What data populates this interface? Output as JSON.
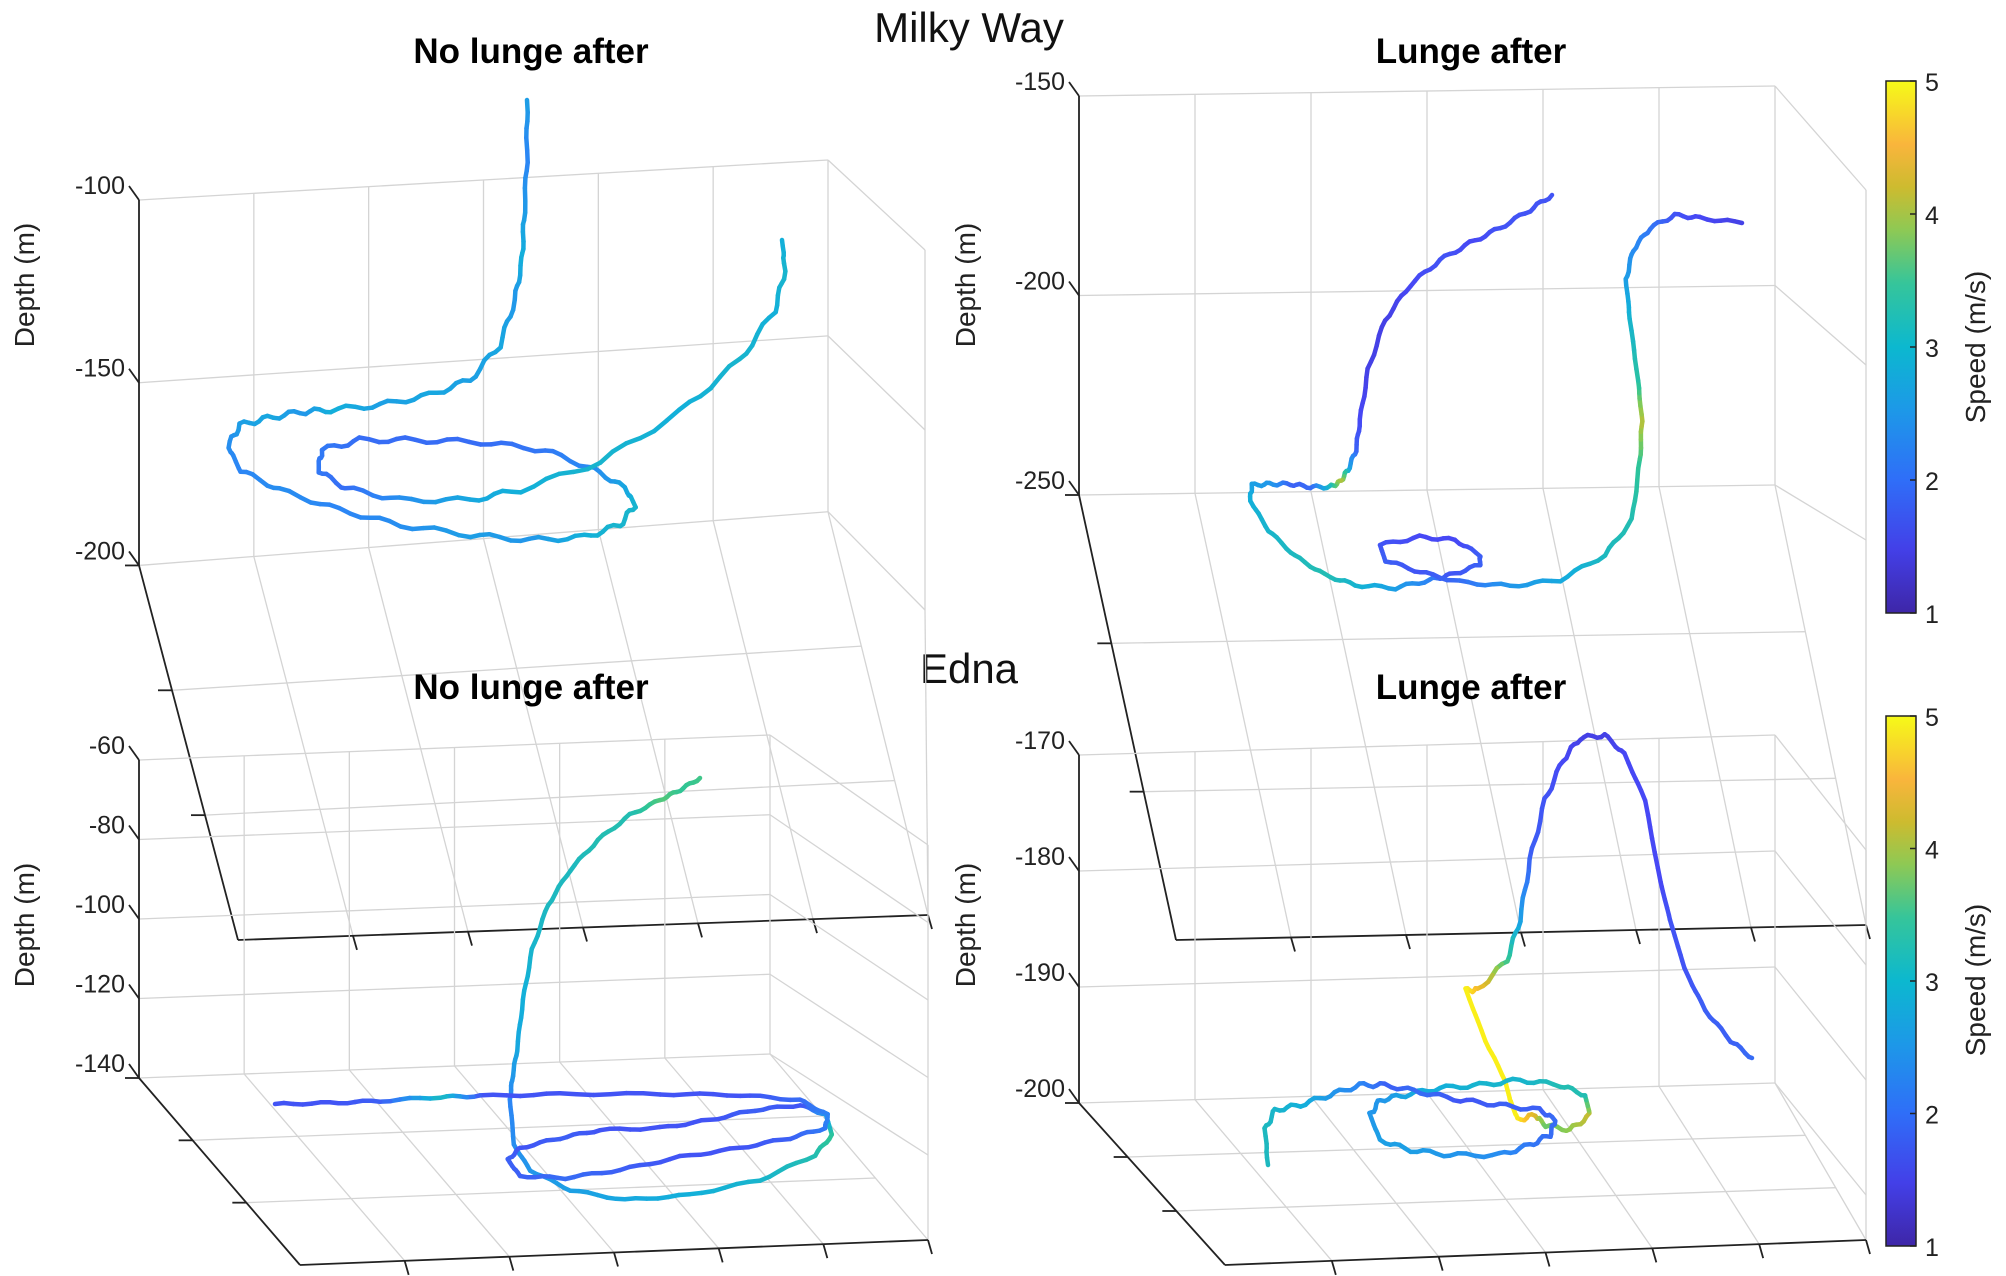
{
  "chart_data": [
    {
      "type": "line",
      "subtype": "3d-trajectory",
      "group": "Milky Way",
      "title": "No lunge after",
      "zlabel": "Depth (m)",
      "zlim": [
        -200,
        -100
      ],
      "zticks": [
        "-100",
        "-150",
        "-200"
      ],
      "color_by": "Speed (m/s)",
      "speed_range_approx": [
        1.5,
        3.2
      ],
      "description": "Wavy descent from about -100 m to the bottom (~-200 m), a wide horizontal loop near the bottom, then a smooth ascent to about -165 m"
    },
    {
      "type": "line",
      "subtype": "3d-trajectory",
      "group": "Milky Way",
      "title": "Lunge after",
      "zlabel": "Depth (m)",
      "zlim": [
        -250,
        -150
      ],
      "zticks": [
        "-150",
        "-200",
        "-250"
      ],
      "colorbar": {
        "label": "Speed (m/s)",
        "min": 1,
        "max": 5,
        "ticks": [
          "1",
          "2",
          "3",
          "4",
          "5"
        ]
      },
      "speed_range_approx": [
        1.2,
        4.5
      ],
      "description": "Descent from about -190 m with a brief high-speed segment near -240 m, small loop at the bottom, ascent to about -195 m"
    },
    {
      "type": "line",
      "subtype": "3d-trajectory",
      "group": "Edna",
      "title": "No lunge after",
      "zlabel": "Depth (m)",
      "zlim": [
        -140,
        -60
      ],
      "zticks": [
        "-60",
        "-80",
        "-100",
        "-120",
        "-140"
      ],
      "color_by": "Speed (m/s)",
      "speed_range_approx": [
        1.3,
        3.3
      ],
      "description": "Horizontal swim near -140 m, elongated loop at the bottom, then ascent to about -70 m"
    },
    {
      "type": "line",
      "subtype": "3d-trajectory",
      "group": "Edna",
      "title": "Lunge after",
      "zlabel": "Depth (m)",
      "zlim": [
        -200,
        -170
      ],
      "zticks": [
        "-170",
        "-180",
        "-190",
        "-200"
      ],
      "colorbar": {
        "label": "Speed (m/s)",
        "min": 1,
        "max": 5,
        "ticks": [
          "1",
          "2",
          "3",
          "4",
          "5"
        ]
      },
      "speed_range_approx": [
        1.3,
        5
      ],
      "description": "Irregular path near -200 m, high-speed (yellow, ~5 m/s) ascent from about -198 m to -190 m, then rise to about -168 m and descent to about -196 m"
    }
  ],
  "figure": {
    "groups": [
      "Milky Way",
      "Edna"
    ],
    "colormap_stops": [
      "#3e26a8",
      "#4748f5",
      "#2c85f5",
      "#13b0da",
      "#2ec597",
      "#8ecb4e",
      "#d8b82b",
      "#fcbf2a",
      "#f9fb15"
    ]
  }
}
